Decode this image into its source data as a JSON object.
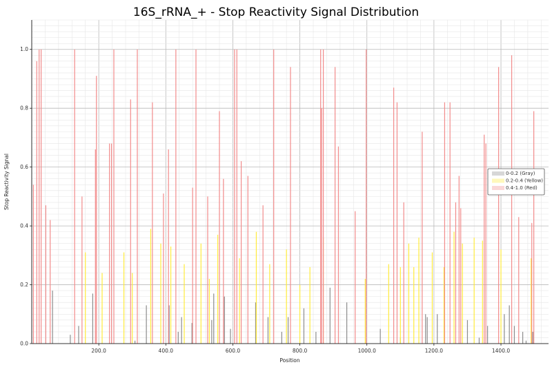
{
  "chart_data": {
    "type": "bar",
    "title": "16S_rRNA_+ - Stop Reactivity Signal Distribution",
    "xlabel": "Position",
    "ylabel": "Stop Reactivity Signal",
    "xlim": [
      0,
      1542
    ],
    "ylim": [
      0,
      1.1
    ],
    "xticks": [
      200,
      400,
      600,
      800,
      1000,
      1200,
      1400
    ],
    "xtick_labels": [
      "200.0",
      "400.0",
      "600.0",
      "800.0",
      "1000.0",
      "1200.0",
      "1400.0"
    ],
    "yticks": [
      0,
      0.2,
      0.4,
      0.6,
      0.8,
      1.0
    ],
    "ytick_labels": [
      "0.0",
      "0.2",
      "0.4",
      "0.6",
      "0.8",
      "1.0"
    ],
    "grid": true,
    "legend_position": "right",
    "series": [
      {
        "name": "0-0.2 (Gray)",
        "color": "#8c8c8c",
        "x": [
          62,
          115,
          140,
          182,
          308,
          342,
          410,
          437,
          447,
          478,
          537,
          543,
          575,
          593,
          668,
          705,
          746,
          765,
          812,
          848,
          890,
          940,
          1040,
          1100,
          1175,
          1180,
          1210,
          1300,
          1335,
          1360,
          1410,
          1425,
          1440,
          1465,
          1475,
          1495
        ],
        "values": [
          0.18,
          0.03,
          0.06,
          0.17,
          0.01,
          0.13,
          0.13,
          0.04,
          0.09,
          0.07,
          0.08,
          0.17,
          0.16,
          0.05,
          0.14,
          0.09,
          0.04,
          0.09,
          0.12,
          0.04,
          0.19,
          0.14,
          0.05,
          0.02,
          0.1,
          0.09,
          0.1,
          0.08,
          0.02,
          0.06,
          0.1,
          0.13,
          0.06,
          0.04,
          0.01,
          0.04
        ]
      },
      {
        "name": "0.2-0.4 (Yellow)",
        "color": "#ffeb3b",
        "x": [
          160,
          210,
          275,
          300,
          355,
          385,
          415,
          455,
          505,
          530,
          555,
          620,
          670,
          710,
          760,
          800,
          830,
          870,
          995,
          1065,
          1100,
          1125,
          1140,
          1155,
          1195,
          1230,
          1260,
          1285,
          1320,
          1345,
          1400,
          1490
        ],
        "values": [
          0.31,
          0.24,
          0.31,
          0.24,
          0.39,
          0.34,
          0.33,
          0.27,
          0.34,
          0.22,
          0.37,
          0.29,
          0.38,
          0.27,
          0.32,
          0.2,
          0.26,
          0.36,
          0.22,
          0.27,
          0.26,
          0.34,
          0.26,
          0.36,
          0.31,
          0.26,
          0.38,
          0.34,
          0.36,
          0.35,
          0.32,
          0.29
        ]
      },
      {
        "name": "0.4-1.0 (Red)",
        "color": "#f28b8b",
        "x": [
          5,
          15,
          22,
          28,
          42,
          55,
          128,
          150,
          190,
          193,
          232,
          238,
          245,
          295,
          315,
          360,
          393,
          408,
          430,
          480,
          490,
          525,
          560,
          572,
          605,
          612,
          625,
          645,
          690,
          722,
          772,
          862,
          865,
          870,
          905,
          915,
          965,
          998,
          1080,
          1090,
          1110,
          1165,
          1232,
          1248,
          1265,
          1275,
          1280,
          1350,
          1355,
          1393,
          1432,
          1453,
          1492,
          1498
        ],
        "values": [
          0.54,
          0.96,
          1.0,
          1.0,
          0.47,
          0.42,
          1.0,
          0.5,
          0.66,
          0.91,
          0.68,
          0.68,
          1.0,
          0.83,
          1.0,
          0.82,
          0.51,
          0.66,
          1.0,
          0.53,
          1.0,
          0.5,
          0.79,
          0.56,
          1.0,
          1.0,
          0.62,
          0.57,
          0.47,
          1.0,
          0.94,
          1.0,
          0.8,
          1.0,
          0.94,
          0.67,
          0.45,
          1.0,
          0.87,
          0.82,
          0.48,
          0.72,
          0.82,
          0.82,
          0.48,
          0.57,
          0.46,
          0.71,
          0.68,
          0.94,
          0.98,
          0.43,
          0.41,
          0.79
        ]
      }
    ]
  }
}
